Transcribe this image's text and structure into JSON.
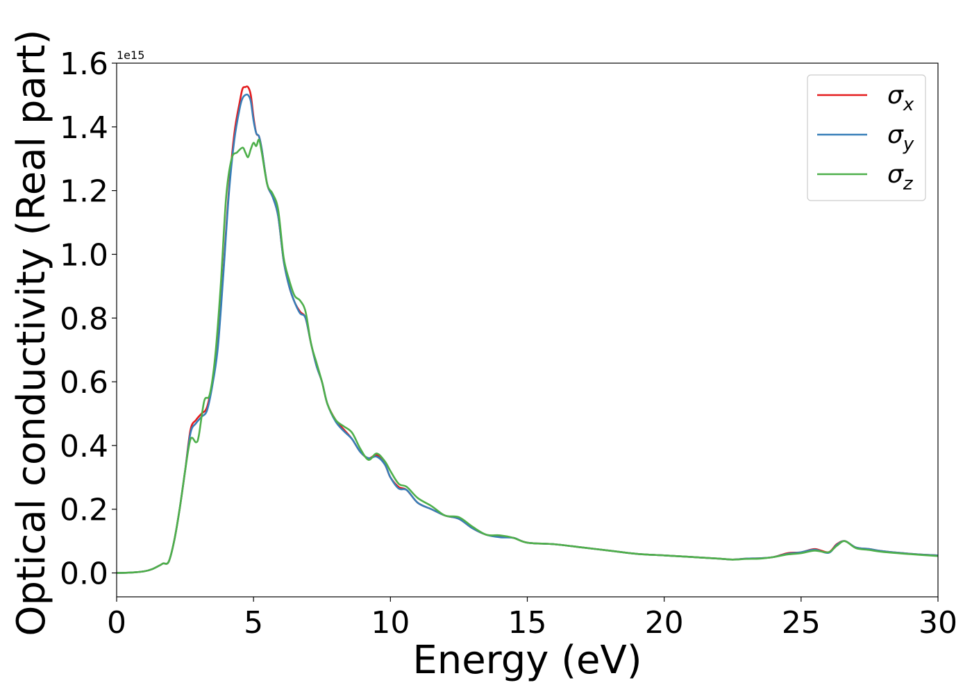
{
  "chart_data": {
    "type": "line",
    "xlabel": "Energy (eV)",
    "ylabel": "Optical conductivity (Real part)",
    "y_offset_label": "1e15",
    "xlim": [
      0,
      30
    ],
    "ylim": [
      -0.075,
      1.6
    ],
    "xticks": [
      0,
      5,
      10,
      15,
      20,
      25,
      30
    ],
    "yticks": [
      0.0,
      0.2,
      0.4,
      0.6,
      0.8,
      1.0,
      1.2,
      1.4,
      1.6
    ],
    "xtick_labels": [
      "0",
      "5",
      "10",
      "15",
      "20",
      "25",
      "30"
    ],
    "ytick_labels": [
      "0.0",
      "0.2",
      "0.4",
      "0.6",
      "0.8",
      "1.0",
      "1.2",
      "1.4",
      "1.6"
    ],
    "grid": false,
    "legend_position": "top-right",
    "series": [
      {
        "name": "σ_x",
        "legend_base": "σ",
        "legend_sub": "x",
        "color": "#e41a1c",
        "x": [
          0,
          0.5,
          1.0,
          1.3,
          1.6,
          1.7,
          1.9,
          2.1,
          2.3,
          2.5,
          2.7,
          2.9,
          3.1,
          3.3,
          3.5,
          3.7,
          3.9,
          4.1,
          4.3,
          4.5,
          4.6,
          4.7,
          4.8,
          4.9,
          5.0,
          5.1,
          5.2,
          5.3,
          5.5,
          5.7,
          5.9,
          6.1,
          6.3,
          6.5,
          6.7,
          6.9,
          7.1,
          7.3,
          7.5,
          7.7,
          8.0,
          8.3,
          8.6,
          8.9,
          9.2,
          9.5,
          9.8,
          10.0,
          10.3,
          10.6,
          11.0,
          11.5,
          12.0,
          12.5,
          13.0,
          13.5,
          14.0,
          14.5,
          15.0,
          16.0,
          17.0,
          18.0,
          19.0,
          20.0,
          21.0,
          22.0,
          22.5,
          23.0,
          23.5,
          24.0,
          24.5,
          25.0,
          25.5,
          26.0,
          26.3,
          26.6,
          27.0,
          27.5,
          28.0,
          29.0,
          30.0
        ],
        "values": [
          0.0,
          0.001,
          0.005,
          0.012,
          0.025,
          0.03,
          0.035,
          0.1,
          0.2,
          0.32,
          0.45,
          0.48,
          0.5,
          0.52,
          0.6,
          0.72,
          0.95,
          1.2,
          1.38,
          1.48,
          1.52,
          1.525,
          1.525,
          1.5,
          1.43,
          1.38,
          1.37,
          1.33,
          1.22,
          1.18,
          1.12,
          0.98,
          0.9,
          0.85,
          0.82,
          0.8,
          0.72,
          0.65,
          0.6,
          0.53,
          0.48,
          0.45,
          0.42,
          0.38,
          0.36,
          0.37,
          0.34,
          0.3,
          0.27,
          0.26,
          0.22,
          0.2,
          0.18,
          0.17,
          0.14,
          0.12,
          0.115,
          0.11,
          0.095,
          0.09,
          0.08,
          0.07,
          0.06,
          0.055,
          0.05,
          0.045,
          0.042,
          0.045,
          0.046,
          0.05,
          0.062,
          0.065,
          0.075,
          0.065,
          0.09,
          0.1,
          0.08,
          0.075,
          0.068,
          0.06,
          0.055
        ]
      },
      {
        "name": "σ_y",
        "legend_base": "σ",
        "legend_sub": "y",
        "color": "#377eb8",
        "x": [
          0,
          0.5,
          1.0,
          1.3,
          1.6,
          1.7,
          1.9,
          2.1,
          2.3,
          2.5,
          2.7,
          2.9,
          3.1,
          3.3,
          3.5,
          3.7,
          3.9,
          4.1,
          4.3,
          4.5,
          4.6,
          4.7,
          4.8,
          4.9,
          5.0,
          5.1,
          5.2,
          5.3,
          5.5,
          5.7,
          5.9,
          6.1,
          6.3,
          6.5,
          6.7,
          6.9,
          7.1,
          7.3,
          7.5,
          7.7,
          8.0,
          8.3,
          8.6,
          8.9,
          9.2,
          9.5,
          9.8,
          10.0,
          10.3,
          10.6,
          11.0,
          11.5,
          12.0,
          12.5,
          13.0,
          13.5,
          14.0,
          14.5,
          15.0,
          16.0,
          17.0,
          18.0,
          19.0,
          20.0,
          21.0,
          22.0,
          22.5,
          23.0,
          23.5,
          24.0,
          24.5,
          25.0,
          25.5,
          26.0,
          26.3,
          26.6,
          27.0,
          27.5,
          28.0,
          29.0,
          30.0
        ],
        "values": [
          0.0,
          0.001,
          0.005,
          0.012,
          0.025,
          0.03,
          0.035,
          0.1,
          0.2,
          0.32,
          0.44,
          0.47,
          0.49,
          0.51,
          0.59,
          0.71,
          0.94,
          1.19,
          1.36,
          1.46,
          1.49,
          1.5,
          1.5,
          1.48,
          1.42,
          1.38,
          1.37,
          1.33,
          1.22,
          1.18,
          1.12,
          0.98,
          0.9,
          0.85,
          0.815,
          0.8,
          0.72,
          0.65,
          0.6,
          0.53,
          0.475,
          0.445,
          0.42,
          0.38,
          0.36,
          0.365,
          0.34,
          0.3,
          0.265,
          0.26,
          0.22,
          0.2,
          0.18,
          0.17,
          0.14,
          0.12,
          0.112,
          0.11,
          0.095,
          0.09,
          0.08,
          0.07,
          0.06,
          0.055,
          0.05,
          0.045,
          0.042,
          0.045,
          0.046,
          0.05,
          0.06,
          0.065,
          0.073,
          0.063,
          0.088,
          0.1,
          0.08,
          0.075,
          0.068,
          0.06,
          0.055
        ]
      },
      {
        "name": "σ_z",
        "legend_base": "σ",
        "legend_sub": "z",
        "color": "#4daf4a",
        "x": [
          0,
          0.5,
          1.0,
          1.3,
          1.6,
          1.7,
          1.9,
          2.1,
          2.3,
          2.5,
          2.7,
          2.9,
          3.0,
          3.2,
          3.4,
          3.6,
          3.8,
          4.0,
          4.2,
          4.4,
          4.6,
          4.7,
          4.8,
          4.9,
          5.0,
          5.1,
          5.2,
          5.3,
          5.5,
          5.7,
          5.9,
          6.1,
          6.3,
          6.5,
          6.7,
          6.9,
          7.1,
          7.3,
          7.5,
          7.7,
          8.0,
          8.3,
          8.6,
          8.9,
          9.2,
          9.5,
          9.8,
          10.0,
          10.3,
          10.6,
          11.0,
          11.5,
          12.0,
          12.5,
          13.0,
          13.5,
          14.0,
          14.5,
          15.0,
          16.0,
          17.0,
          18.0,
          19.0,
          20.0,
          21.0,
          22.0,
          22.5,
          23.0,
          23.5,
          24.0,
          24.5,
          25.0,
          25.5,
          26.0,
          26.3,
          26.6,
          27.0,
          27.5,
          28.0,
          29.0,
          30.0
        ],
        "values": [
          0.0,
          0.001,
          0.005,
          0.012,
          0.025,
          0.03,
          0.035,
          0.1,
          0.2,
          0.32,
          0.42,
          0.41,
          0.43,
          0.54,
          0.56,
          0.68,
          0.9,
          1.18,
          1.3,
          1.32,
          1.335,
          1.32,
          1.305,
          1.33,
          1.35,
          1.34,
          1.36,
          1.32,
          1.22,
          1.19,
          1.14,
          0.99,
          0.92,
          0.87,
          0.855,
          0.82,
          0.72,
          0.66,
          0.6,
          0.53,
          0.48,
          0.46,
          0.44,
          0.39,
          0.355,
          0.375,
          0.35,
          0.32,
          0.28,
          0.27,
          0.235,
          0.21,
          0.18,
          0.175,
          0.145,
          0.12,
          0.118,
          0.11,
          0.095,
          0.09,
          0.08,
          0.07,
          0.06,
          0.055,
          0.05,
          0.045,
          0.042,
          0.044,
          0.045,
          0.05,
          0.058,
          0.062,
          0.07,
          0.065,
          0.085,
          0.1,
          0.078,
          0.072,
          0.066,
          0.059,
          0.053
        ]
      }
    ]
  }
}
